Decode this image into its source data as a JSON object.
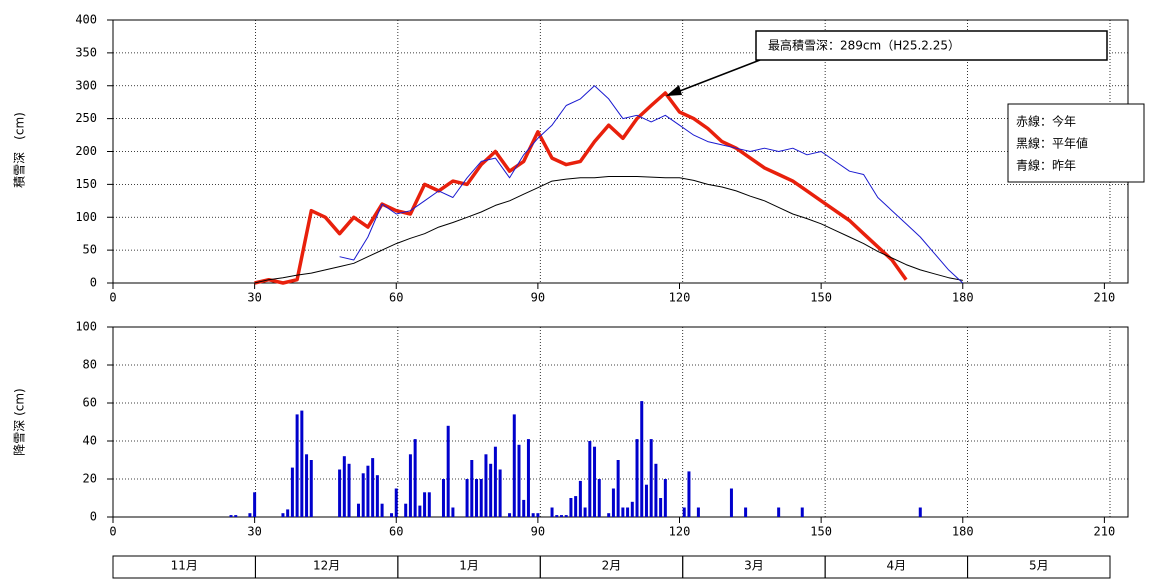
{
  "chart_data": [
    {
      "type": "line",
      "y_label": "積雪深　(cm)",
      "annotation": "最高積雪深：289cm（H25.2.25）",
      "xlim": [
        0,
        215
      ],
      "xticks": [
        0,
        30,
        60,
        90,
        120,
        150,
        180,
        210
      ],
      "ylim": [
        0,
        400
      ],
      "yticks": [
        0,
        50,
        100,
        150,
        200,
        250,
        300,
        350,
        400
      ],
      "grid": true,
      "x": [
        30,
        33,
        36,
        39,
        42,
        45,
        48,
        51,
        54,
        57,
        60,
        63,
        66,
        69,
        72,
        75,
        78,
        81,
        84,
        87,
        90,
        93,
        96,
        99,
        102,
        105,
        108,
        111,
        114,
        117,
        120,
        123,
        126,
        129,
        132,
        135,
        138,
        141,
        144,
        147,
        150,
        153,
        156,
        159,
        162,
        165,
        168,
        171,
        174,
        177,
        180
      ],
      "series": [
        {
          "name": "赤線：今年",
          "color": "#e8200c",
          "width": 3.5,
          "values": [
            0,
            5,
            0,
            5,
            110,
            100,
            75,
            100,
            85,
            120,
            110,
            105,
            150,
            140,
            155,
            150,
            180,
            200,
            170,
            185,
            230,
            190,
            180,
            185,
            215,
            240,
            220,
            250,
            270,
            289,
            260,
            250,
            235,
            215,
            205,
            190,
            175,
            165,
            155,
            140,
            125,
            110,
            95,
            75,
            55,
            35,
            5,
            null,
            null,
            null,
            null
          ]
        },
        {
          "name": "黑線：平年値",
          "color": "#000000",
          "width": 1,
          "values": [
            0,
            5,
            8,
            12,
            15,
            20,
            25,
            30,
            40,
            50,
            60,
            68,
            75,
            85,
            92,
            100,
            108,
            118,
            125,
            135,
            145,
            155,
            158,
            160,
            160,
            162,
            162,
            162,
            161,
            160,
            160,
            156,
            150,
            146,
            140,
            132,
            125,
            115,
            105,
            98,
            90,
            80,
            70,
            60,
            48,
            38,
            28,
            20,
            14,
            8,
            4
          ]
        },
        {
          "name": "青線：昨年",
          "color": "#1a1ad0",
          "width": 1,
          "values": [
            null,
            null,
            null,
            null,
            null,
            null,
            40,
            35,
            70,
            120,
            105,
            110,
            125,
            140,
            130,
            160,
            185,
            190,
            160,
            195,
            220,
            240,
            270,
            280,
            300,
            280,
            250,
            255,
            245,
            255,
            240,
            225,
            215,
            210,
            205,
            200,
            205,
            200,
            205,
            195,
            200,
            185,
            170,
            165,
            130,
            110,
            90,
            70,
            45,
            20,
            0
          ]
        }
      ]
    },
    {
      "type": "bar",
      "y_label": "降雪深 (cm)",
      "xlim": [
        0,
        215
      ],
      "xticks": [
        0,
        30,
        60,
        90,
        120,
        150,
        180,
        210
      ],
      "ylim": [
        0,
        100
      ],
      "yticks": [
        0,
        20,
        40,
        60,
        80,
        100
      ],
      "grid": true,
      "color": "#0000cc",
      "x": [
        25,
        26,
        29,
        30,
        36,
        37,
        38,
        39,
        40,
        41,
        42,
        48,
        49,
        50,
        52,
        53,
        54,
        55,
        56,
        57,
        59,
        60,
        62,
        63,
        64,
        65,
        66,
        67,
        70,
        71,
        72,
        75,
        76,
        77,
        78,
        79,
        80,
        81,
        82,
        84,
        85,
        86,
        87,
        88,
        89,
        90,
        93,
        94,
        95,
        96,
        97,
        98,
        99,
        100,
        101,
        102,
        103,
        105,
        106,
        107,
        108,
        109,
        110,
        111,
        112,
        113,
        114,
        115,
        116,
        117,
        121,
        122,
        124,
        131,
        134,
        141,
        146,
        171
      ],
      "values": [
        1,
        1,
        2,
        13,
        2,
        4,
        26,
        54,
        56,
        33,
        30,
        25,
        32,
        28,
        7,
        23,
        27,
        31,
        22,
        7,
        2,
        15,
        7,
        33,
        41,
        6,
        13,
        13,
        20,
        48,
        5,
        20,
        30,
        20,
        20,
        33,
        28,
        37,
        25,
        2,
        54,
        38,
        9,
        41,
        2,
        2,
        5,
        1,
        1,
        1,
        10,
        11,
        19,
        5,
        40,
        37,
        20,
        2,
        15,
        30,
        5,
        5,
        8,
        41,
        61,
        17,
        41,
        28,
        10,
        20,
        5,
        24,
        5,
        15,
        5,
        5,
        5,
        5
      ],
      "month_labels": [
        "11月",
        "12月",
        "1月",
        "2月",
        "3月",
        "4月",
        "5月"
      ]
    }
  ]
}
